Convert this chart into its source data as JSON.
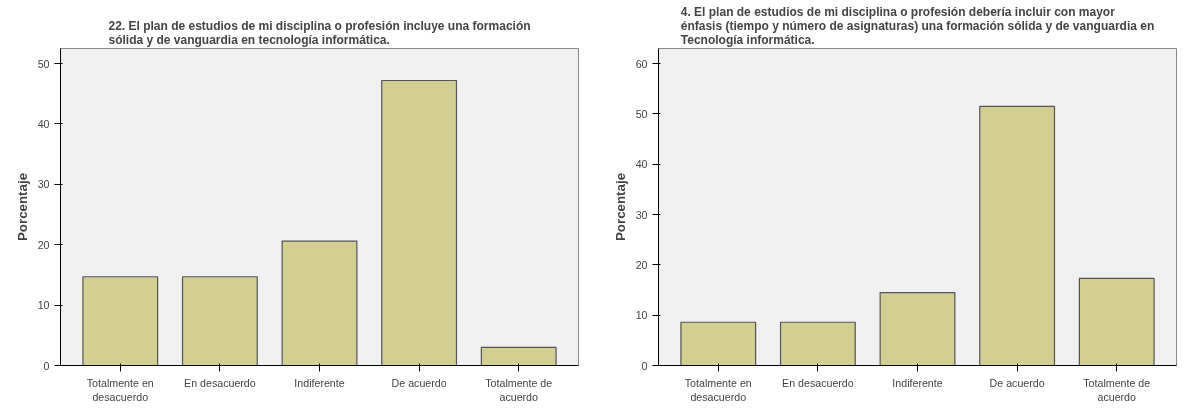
{
  "chart_data": [
    {
      "type": "bar",
      "title": "22. El plan de estudios de mi disciplina o profesión incluye una formación sólida y de vanguardia en tecnología informática.",
      "ylabel": "Porcentaje",
      "categories": [
        "Totalmente en desacuerdo",
        "En desacuerdo",
        "Indiferente",
        "De acuerdo",
        "Totalmente de acuerdo"
      ],
      "values": [
        14.7,
        14.7,
        20.6,
        47.2,
        3.0
      ],
      "color": "#d3cf93",
      "ylim": [
        0,
        52.5
      ],
      "yticks": [
        0,
        10,
        20,
        30,
        40,
        50
      ],
      "grid": false
    },
    {
      "type": "bar",
      "title": "4. El plan de estudios de mi disciplina o profesión debería incluir con mayor énfasis (tiempo y número de asignaturas) una formación sólida y de vanguardia en Tecnología informática.",
      "ylabel": "Porcentaje",
      "categories": [
        "Totalmente en desacuerdo",
        "En desacuerdo",
        "Indiferente",
        "De acuerdo",
        "Totalmente de acuerdo"
      ],
      "values": [
        8.6,
        8.6,
        14.5,
        51.5,
        17.3
      ],
      "color": "#d3cf93",
      "ylim": [
        0,
        63
      ],
      "yticks": [
        0,
        10,
        20,
        30,
        40,
        50,
        60
      ],
      "grid": false
    }
  ]
}
